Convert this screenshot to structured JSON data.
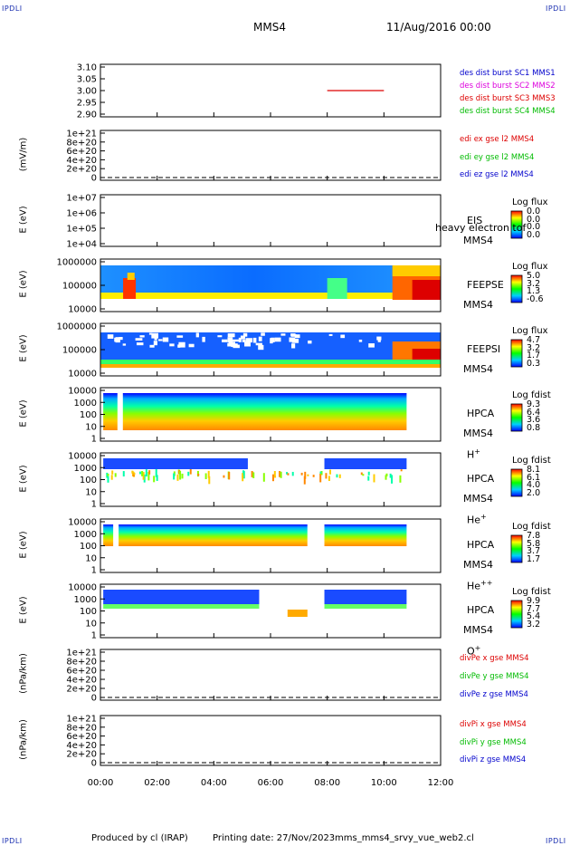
{
  "header": {
    "corner_label": "IPDLI",
    "spacecraft": "MMS4",
    "date": "11/Aug/2016 00:00"
  },
  "footer": {
    "produced_by": "Produced by cl (IRAP)",
    "printing_date": "Printing date: 27/Nov/2023",
    "filename": "mms_mms4_srvy_vue_web2.cl"
  },
  "colors": {
    "red": "#dd0000",
    "green": "#00bb00",
    "blue": "#0000cc",
    "magenta": "#dd00dd"
  },
  "time_axis": {
    "ticks": [
      "00:00",
      "02:00",
      "04:00",
      "06:00",
      "08:00",
      "10:00",
      "12:00"
    ],
    "range_hours": [
      0,
      12
    ]
  },
  "chart_data": [
    {
      "type": "line",
      "panel": "burst",
      "ytick_labels": [
        "3.10",
        "3.05",
        "3.00",
        "2.95",
        "2.90"
      ],
      "ylim": [
        2.9,
        3.1
      ],
      "channels": [
        {
          "label": "des dist burst SC1 MMS1",
          "color": "#0000cc"
        },
        {
          "label": "des dist burst SC2 MMS2",
          "color": "#dd00dd"
        },
        {
          "label": "des dist burst SC3 MMS3",
          "color": "#dd0000"
        },
        {
          "label": "des dist burst SC4 MMS4",
          "color": "#00bb00"
        }
      ],
      "series": [
        {
          "x_hours": [
            8.0,
            10.0
          ],
          "y": [
            3.0,
            3.0
          ],
          "color": "#dd0000"
        }
      ]
    },
    {
      "type": "line",
      "panel": "edi",
      "ylabel": "(mV/m)",
      "ytick_labels": [
        "1e+21",
        "8e+20",
        "6e+20",
        "4e+20",
        "2e+20",
        "0"
      ],
      "ylim": [
        0,
        1e+21
      ],
      "channels": [
        {
          "label": "edi ex gse l2 MMS4",
          "color": "#dd0000"
        },
        {
          "label": "edi ey gse l2 MMS4",
          "color": "#00bb00"
        },
        {
          "label": "edi ez gse l2 MMS4",
          "color": "#0000cc"
        }
      ],
      "zero_line": true
    },
    {
      "type": "heatmap",
      "panel": "eis",
      "ylabel": "E (eV)",
      "ytick_labels": [
        "1e+07",
        "1e+06",
        "1e+05",
        "1e+04"
      ],
      "instrument": "EIS",
      "instrument_sub": "MMS4",
      "overlay_text": "heavy electron tof",
      "colorbar_title": "Log flux",
      "colorbar_values": [
        "0.0",
        "0.0",
        "0.0",
        "0.0"
      ]
    },
    {
      "type": "heatmap",
      "panel": "feepse",
      "ylabel": "E (eV)",
      "ytick_labels": [
        "1000000",
        "100000",
        "10000"
      ],
      "instrument": "FEEPSE",
      "instrument_sub": "MMS4",
      "colorbar_title": "Log flux",
      "colorbar_values": [
        "5.0",
        "3.2",
        "1.3",
        "-0.6"
      ]
    },
    {
      "type": "heatmap",
      "panel": "feepsi",
      "ylabel": "E (eV)",
      "ytick_labels": [
        "1000000",
        "100000",
        "10000"
      ],
      "instrument": "FEEPSI",
      "instrument_sub": "MMS4",
      "colorbar_title": "Log flux",
      "colorbar_values": [
        "4.7",
        "3.2",
        "1.7",
        "0.3"
      ]
    },
    {
      "type": "heatmap",
      "panel": "hpca_h",
      "ylabel": "E (eV)",
      "ytick_labels": [
        "10000",
        "1000",
        "100",
        "10",
        "1"
      ],
      "instrument": "HPCA",
      "instrument_sub": "MMS4",
      "species": "H",
      "species_sup": "+",
      "colorbar_title": "Log fdist",
      "colorbar_values": [
        "9.3",
        "6.4",
        "3.6",
        "0.8"
      ]
    },
    {
      "type": "heatmap",
      "panel": "hpca_he",
      "ylabel": "E (eV)",
      "ytick_labels": [
        "10000",
        "1000",
        "100",
        "10",
        "1"
      ],
      "instrument": "HPCA",
      "instrument_sub": "MMS4",
      "species": "He",
      "species_sup": "+",
      "colorbar_title": "Log fdist",
      "colorbar_values": [
        "8.1",
        "6.1",
        "4.0",
        "2.0"
      ]
    },
    {
      "type": "heatmap",
      "panel": "hpca_hepp",
      "ylabel": "E (eV)",
      "ytick_labels": [
        "10000",
        "1000",
        "100",
        "10",
        "1"
      ],
      "instrument": "HPCA",
      "instrument_sub": "MMS4",
      "species": "He",
      "species_sup": "++",
      "colorbar_title": "Log fdist",
      "colorbar_values": [
        "7.8",
        "5.8",
        "3.7",
        "1.7"
      ]
    },
    {
      "type": "heatmap",
      "panel": "hpca_o",
      "ylabel": "E (eV)",
      "ytick_labels": [
        "10000",
        "1000",
        "100",
        "10",
        "1"
      ],
      "instrument": "HPCA",
      "instrument_sub": "MMS4",
      "species": "O",
      "species_sup": "+",
      "colorbar_title": "Log fdist",
      "colorbar_values": [
        "9.9",
        "7.7",
        "5.4",
        "3.2"
      ]
    },
    {
      "type": "line",
      "panel": "divpe",
      "ylabel": "(nPa/km)",
      "ytick_labels": [
        "1e+21",
        "8e+20",
        "6e+20",
        "4e+20",
        "2e+20",
        "0"
      ],
      "ylim": [
        0,
        1e+21
      ],
      "channels": [
        {
          "label": "divPe x gse MMS4",
          "color": "#dd0000"
        },
        {
          "label": "divPe y gse MMS4",
          "color": "#00bb00"
        },
        {
          "label": "divPe z gse MMS4",
          "color": "#0000cc"
        }
      ],
      "zero_line": true
    },
    {
      "type": "line",
      "panel": "divpi",
      "ylabel": "(nPa/km)",
      "ytick_labels": [
        "1e+21",
        "8e+20",
        "6e+20",
        "4e+20",
        "2e+20",
        "0"
      ],
      "ylim": [
        0,
        1e+21
      ],
      "channels": [
        {
          "label": "divPi x gse MMS4",
          "color": "#dd0000"
        },
        {
          "label": "divPi y gse MMS4",
          "color": "#00bb00"
        },
        {
          "label": "divPi z gse MMS4",
          "color": "#0000cc"
        }
      ],
      "zero_line": true
    }
  ]
}
